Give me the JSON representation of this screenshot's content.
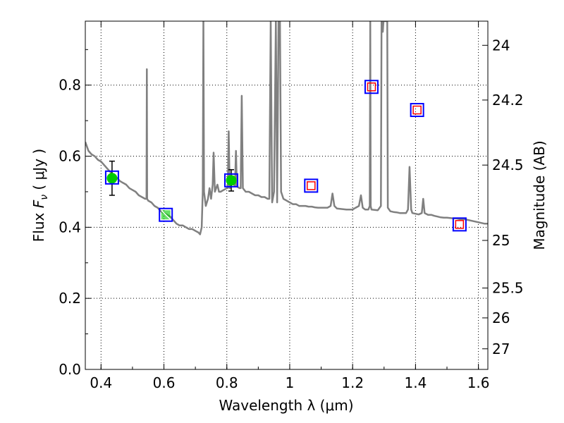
{
  "chart_data": {
    "type": "line",
    "xlabel": "Wavelength  λ (μm)",
    "ylabel_prefix": "Flux  ",
    "ylabel_symbol": "F",
    "ylabel_sub": "ν",
    "ylabel_suffix": "  ( μJy )",
    "y2label": "Magnitude (AB)",
    "xlim": [
      0.35,
      1.63
    ],
    "ylim": [
      0.0,
      0.98
    ],
    "grid": true,
    "x_ticks": [
      {
        "v": 0.4,
        "label": "0.4"
      },
      {
        "v": 0.6,
        "label": "0.6"
      },
      {
        "v": 0.8,
        "label": "0.8"
      },
      {
        "v": 1.0,
        "label": "1"
      },
      {
        "v": 1.2,
        "label": "1.2"
      },
      {
        "v": 1.4,
        "label": "1.4"
      },
      {
        "v": 1.6,
        "label": "1.6"
      }
    ],
    "y_ticks": [
      {
        "v": 0.0,
        "label": "0.0"
      },
      {
        "v": 0.2,
        "label": "0.2"
      },
      {
        "v": 0.4,
        "label": "0.4"
      },
      {
        "v": 0.6,
        "label": "0.6"
      },
      {
        "v": 0.8,
        "label": "0.8"
      }
    ],
    "y2_ticks": [
      {
        "flux": 0.912,
        "label": "24"
      },
      {
        "flux": 0.758,
        "label": "24.2"
      },
      {
        "flux": 0.575,
        "label": "24.5"
      },
      {
        "flux": 0.363,
        "label": "25"
      },
      {
        "flux": 0.229,
        "label": "25.5"
      },
      {
        "flux": 0.145,
        "label": "26"
      },
      {
        "flux": 0.058,
        "label": "27"
      }
    ],
    "model_spectrum": {
      "color": "#808080",
      "points": [
        [
          0.35,
          0.64
        ],
        [
          0.36,
          0.615
        ],
        [
          0.37,
          0.605
        ],
        [
          0.38,
          0.6
        ],
        [
          0.39,
          0.59
        ],
        [
          0.4,
          0.585
        ],
        [
          0.41,
          0.575
        ],
        [
          0.42,
          0.565
        ],
        [
          0.43,
          0.555
        ],
        [
          0.44,
          0.545
        ],
        [
          0.45,
          0.54
        ],
        [
          0.46,
          0.53
        ],
        [
          0.47,
          0.525
        ],
        [
          0.48,
          0.52
        ],
        [
          0.49,
          0.51
        ],
        [
          0.5,
          0.505
        ],
        [
          0.51,
          0.5
        ],
        [
          0.52,
          0.49
        ],
        [
          0.53,
          0.485
        ],
        [
          0.54,
          0.48
        ],
        [
          0.5446,
          0.48
        ],
        [
          0.5456,
          0.845
        ],
        [
          0.5466,
          0.48
        ],
        [
          0.55,
          0.475
        ],
        [
          0.56,
          0.47
        ],
        [
          0.57,
          0.46
        ],
        [
          0.58,
          0.455
        ],
        [
          0.59,
          0.445
        ],
        [
          0.6,
          0.44
        ],
        [
          0.61,
          0.435
        ],
        [
          0.62,
          0.43
        ],
        [
          0.63,
          0.42
        ],
        [
          0.64,
          0.41
        ],
        [
          0.65,
          0.405
        ],
        [
          0.66,
          0.405
        ],
        [
          0.67,
          0.4
        ],
        [
          0.68,
          0.395
        ],
        [
          0.69,
          0.395
        ],
        [
          0.7,
          0.39
        ],
        [
          0.71,
          0.385
        ],
        [
          0.715,
          0.38
        ],
        [
          0.72,
          0.4
        ],
        [
          0.7235,
          0.5
        ],
        [
          0.7255,
          0.98
        ],
        [
          0.7275,
          0.5
        ],
        [
          0.733,
          0.46
        ],
        [
          0.74,
          0.48
        ],
        [
          0.745,
          0.51
        ],
        [
          0.75,
          0.48
        ],
        [
          0.755,
          0.52
        ],
        [
          0.758,
          0.61
        ],
        [
          0.762,
          0.5
        ],
        [
          0.77,
          0.52
        ],
        [
          0.775,
          0.5
        ],
        [
          0.78,
          0.5
        ],
        [
          0.79,
          0.505
        ],
        [
          0.8,
          0.51
        ],
        [
          0.803,
          0.51
        ],
        [
          0.806,
          0.67
        ],
        [
          0.809,
          0.51
        ],
        [
          0.815,
          0.52
        ],
        [
          0.82,
          0.525
        ],
        [
          0.826,
          0.515
        ],
        [
          0.829,
          0.615
        ],
        [
          0.832,
          0.515
        ],
        [
          0.84,
          0.51
        ],
        [
          0.844,
          0.51
        ],
        [
          0.8475,
          0.77
        ],
        [
          0.851,
          0.51
        ],
        [
          0.86,
          0.5
        ],
        [
          0.87,
          0.5
        ],
        [
          0.88,
          0.495
        ],
        [
          0.89,
          0.49
        ],
        [
          0.9,
          0.49
        ],
        [
          0.91,
          0.485
        ],
        [
          0.92,
          0.485
        ],
        [
          0.93,
          0.48
        ],
        [
          0.935,
          0.48
        ],
        [
          0.9395,
          0.98
        ],
        [
          0.944,
          0.47
        ],
        [
          0.95,
          0.5
        ],
        [
          0.956,
          0.98
        ],
        [
          0.96,
          0.47
        ],
        [
          0.9645,
          0.98
        ],
        [
          0.969,
          0.98
        ],
        [
          0.9725,
          0.5
        ],
        [
          0.98,
          0.48
        ],
        [
          0.99,
          0.475
        ],
        [
          1.0,
          0.47
        ],
        [
          1.01,
          0.465
        ],
        [
          1.02,
          0.465
        ],
        [
          1.03,
          0.46
        ],
        [
          1.04,
          0.46
        ],
        [
          1.05,
          0.46
        ],
        [
          1.06,
          0.458
        ],
        [
          1.07,
          0.458
        ],
        [
          1.08,
          0.456
        ],
        [
          1.09,
          0.455
        ],
        [
          1.1,
          0.455
        ],
        [
          1.11,
          0.455
        ],
        [
          1.12,
          0.455
        ],
        [
          1.13,
          0.46
        ],
        [
          1.136,
          0.495
        ],
        [
          1.142,
          0.46
        ],
        [
          1.15,
          0.453
        ],
        [
          1.16,
          0.452
        ],
        [
          1.17,
          0.451
        ],
        [
          1.18,
          0.45
        ],
        [
          1.19,
          0.45
        ],
        [
          1.2,
          0.45
        ],
        [
          1.21,
          0.455
        ],
        [
          1.22,
          0.46
        ],
        [
          1.2265,
          0.49
        ],
        [
          1.232,
          0.455
        ],
        [
          1.24,
          0.45
        ],
        [
          1.25,
          0.45
        ],
        [
          1.2545,
          0.46
        ],
        [
          1.256,
          0.98
        ],
        [
          1.2575,
          0.46
        ],
        [
          1.26,
          0.45
        ],
        [
          1.27,
          0.449
        ],
        [
          1.28,
          0.448
        ],
        [
          1.29,
          0.46
        ],
        [
          1.292,
          0.98
        ],
        [
          1.294,
          0.98
        ],
        [
          1.296,
          0.95
        ],
        [
          1.298,
          0.98
        ],
        [
          1.31,
          0.98
        ],
        [
          1.312,
          0.455
        ],
        [
          1.32,
          0.445
        ],
        [
          1.33,
          0.443
        ],
        [
          1.34,
          0.442
        ],
        [
          1.35,
          0.44
        ],
        [
          1.36,
          0.44
        ],
        [
          1.37,
          0.44
        ],
        [
          1.376,
          0.45
        ],
        [
          1.381,
          0.57
        ],
        [
          1.386,
          0.45
        ],
        [
          1.39,
          0.44
        ],
        [
          1.4,
          0.438
        ],
        [
          1.41,
          0.436
        ],
        [
          1.42,
          0.44
        ],
        [
          1.4245,
          0.48
        ],
        [
          1.429,
          0.44
        ],
        [
          1.44,
          0.435
        ],
        [
          1.45,
          0.435
        ],
        [
          1.46,
          0.432
        ],
        [
          1.47,
          0.43
        ],
        [
          1.48,
          0.428
        ],
        [
          1.49,
          0.427
        ],
        [
          1.5,
          0.427
        ],
        [
          1.51,
          0.426
        ],
        [
          1.52,
          0.425
        ],
        [
          1.53,
          0.425
        ],
        [
          1.54,
          0.423
        ],
        [
          1.55,
          0.423
        ],
        [
          1.56,
          0.422
        ],
        [
          1.57,
          0.42
        ],
        [
          1.58,
          0.418
        ],
        [
          1.59,
          0.416
        ],
        [
          1.6,
          0.414
        ],
        [
          1.61,
          0.412
        ],
        [
          1.62,
          0.41
        ],
        [
          1.63,
          0.41
        ]
      ]
    },
    "model_photometry": {
      "marker": "square",
      "edge_color": "#0000ff",
      "points": [
        {
          "x": 0.435,
          "y": 0.54
        },
        {
          "x": 0.606,
          "y": 0.435
        },
        {
          "x": 0.814,
          "y": 0.532
        },
        {
          "x": 1.068,
          "y": 0.517
        },
        {
          "x": 1.26,
          "y": 0.795
        },
        {
          "x": 1.405,
          "y": 0.73
        },
        {
          "x": 1.54,
          "y": 0.408
        }
      ]
    },
    "observed_detections": {
      "marker": "circle",
      "color": "#00cc00",
      "points": [
        {
          "x": 0.435,
          "y": 0.538,
          "err": 0.048
        },
        {
          "x": 0.606,
          "y": 0.435,
          "err": 0.0
        },
        {
          "x": 0.814,
          "y": 0.532,
          "err": 0.03
        }
      ]
    },
    "observed_limits": {
      "marker": "square",
      "edge_color": "#ff0000",
      "points": [
        {
          "x": 1.068,
          "y": 0.517
        },
        {
          "x": 1.26,
          "y": 0.795
        },
        {
          "x": 1.405,
          "y": 0.73
        },
        {
          "x": 1.54,
          "y": 0.408
        }
      ]
    }
  }
}
